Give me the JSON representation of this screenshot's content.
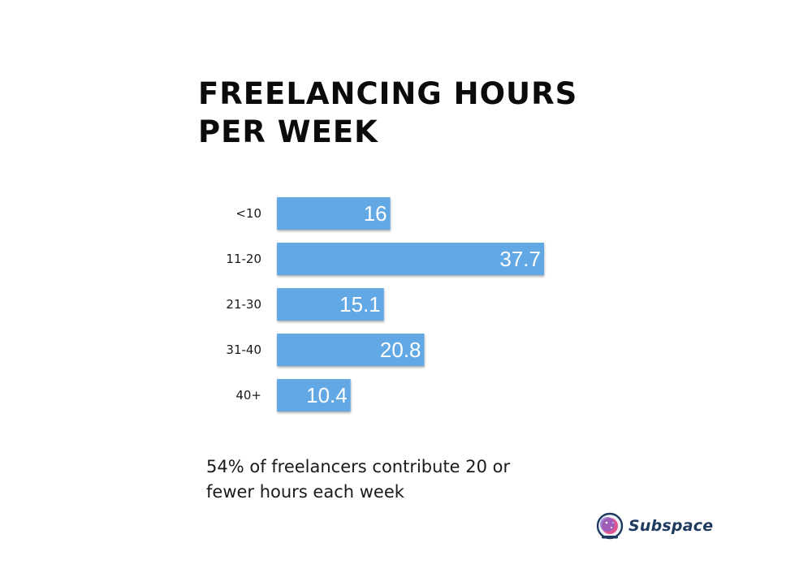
{
  "title": {
    "line1": "FREELANCING HOURS",
    "line2": "PER WEEK"
  },
  "chart_data": {
    "type": "bar",
    "orientation": "horizontal",
    "categories": [
      "<10",
      "11-20",
      "21-30",
      "31-40",
      "40+"
    ],
    "values": [
      16,
      37.7,
      15.1,
      20.8,
      10.4
    ],
    "value_labels": [
      "16",
      "37.7",
      "15.1",
      "20.8",
      "10.4"
    ],
    "title": "FREELANCING HOURS PER WEEK",
    "xlabel": "",
    "ylabel": "",
    "xlim": [
      0,
      37.7
    ],
    "grid": false,
    "legend": "none",
    "bar_color": "#62a8e5",
    "label_color": "#ffffff"
  },
  "caption": {
    "line1": "54% of freelancers contribute 20 or",
    "line2": "fewer hours each week"
  },
  "logo": {
    "text": "Subspace",
    "icon": "astronaut-helmet-icon",
    "color": "#1f3a5f"
  }
}
